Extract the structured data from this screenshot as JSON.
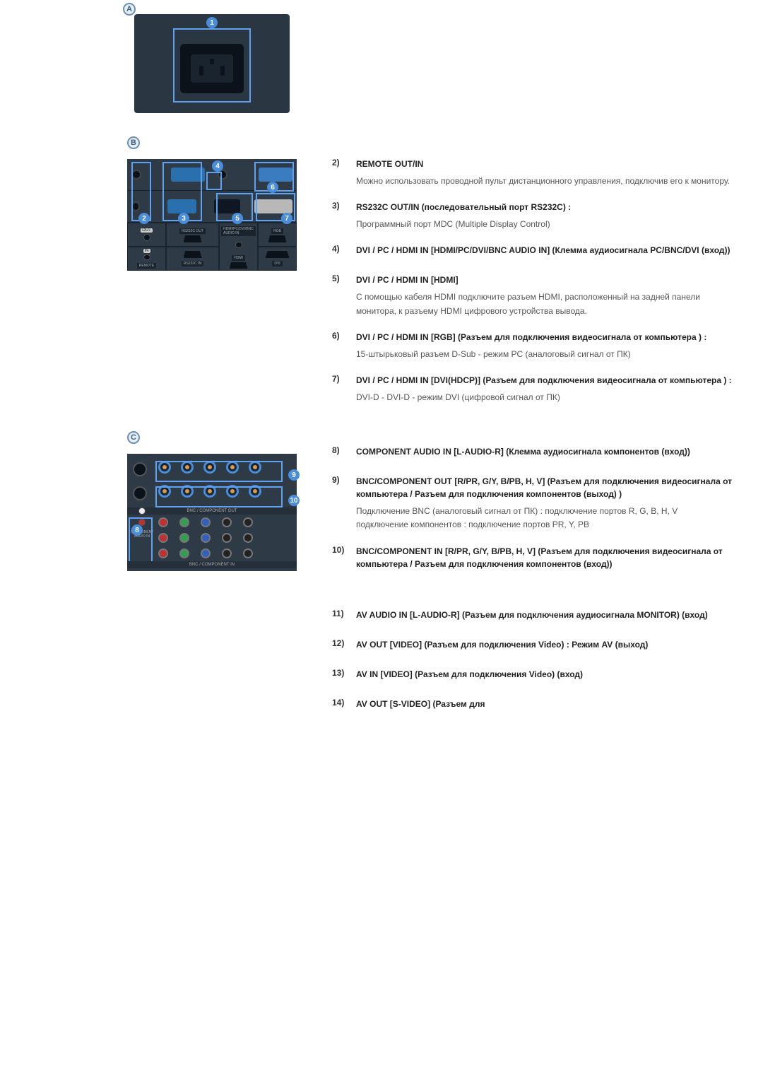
{
  "colors": {
    "badge_border": "#6a8fb5",
    "badge_fill": "#e6eef6",
    "badge_text": "#3a5f85",
    "num_fill": "#4a8dd8",
    "selection_border": "#5fa2f0",
    "panel_bg": "#2e3a46",
    "text_primary": "#333333",
    "text_secondary": "#555555"
  },
  "badges": {
    "a": "A",
    "b": "B",
    "c": "C"
  },
  "panel_a": {
    "callouts": {
      "n1": "1"
    }
  },
  "panel_b": {
    "callouts": {
      "n2": "2",
      "n3": "3",
      "n4": "4",
      "n5": "5",
      "n6": "6",
      "n7": "7"
    },
    "labels": {
      "out": "OUT",
      "in": "IN",
      "remote": "REMOTE",
      "rs232_out": "RS232C OUT",
      "rs232_in": "RS232C IN",
      "audio": "HDMI/PC/DVI/BNC AUDIO IN",
      "hdmi": "HDMI",
      "rgb": "RGB",
      "dvi": "DVI"
    }
  },
  "panel_c": {
    "callouts": {
      "n8": "8",
      "n9": "9",
      "n10": "10"
    },
    "labels": {
      "comp_audio": "COMPONENT AUDIO IN",
      "bnc_out": "BNC / COMPONENT OUT",
      "bnc_in": "BNC / COMPONENT IN"
    }
  },
  "items_b": [
    {
      "n": "2)",
      "title": "REMOTE OUT/IN",
      "desc": "Можно использовать проводной пульт дистанционного управления, подключив его к монитору."
    },
    {
      "n": "3)",
      "title": "RS232C OUT/IN (последовательный порт RS232C) :",
      "desc": "Программный порт MDC (Multiple Display Control)"
    },
    {
      "n": "4)",
      "title": "DVI / PC / HDMI IN [HDMI/PC/DVI/BNC AUDIO IN] (Клемма аудиосигнала PC/BNC/DVI (вход))",
      "desc": ""
    },
    {
      "n": "5)",
      "title": "DVI / PC / HDMI IN [HDMI]",
      "desc": "С помощью кабеля HDMI подключите разъем HDMI, расположенный на задней панели монитора, к разъему HDMI цифрового устройства вывода."
    },
    {
      "n": "6)",
      "title": "DVI / PC / HDMI IN [RGB] (Разъем для подключения видеосигнала от компьютера ) :",
      "desc": "15-штырьковый разъем D-Sub - режим PC (аналоговый сигнал от ПК)"
    },
    {
      "n": "7)",
      "title": "DVI / PC / HDMI IN [DVI(HDCP)] (Разъем для подключения видеосигнала от компьютера ) :",
      "desc": "DVI-D - DVI-D - режим DVI (цифровой сигнал от ПК)"
    }
  ],
  "items_c": [
    {
      "n": "8)",
      "title": "COMPONENT AUDIO IN [L-AUDIO-R] (Клемма аудиосигнала компонентов (вход))",
      "desc": ""
    },
    {
      "n": "9)",
      "title": "BNC/COMPONENT OUT [R/PR, G/Y, B/PB, H, V] (Разъем для подключения видеосигнала от компьютера / Разъем для подключения компонентов (выход) )",
      "desc": "Подключение BNC (аналоговый сигнал от ПК) : подключение портов R, G, B, H, V\nподключение компонентов : подключение портов PR, Y, PB"
    },
    {
      "n": "10)",
      "title": "BNC/COMPONENT IN [R/PR, G/Y, B/PB, H, V] (Разъем для подключения видеосигнала от компьютера / Разъем для подключения компонентов (вход))",
      "desc": ""
    }
  ],
  "items_d": [
    {
      "n": "11)",
      "title": "AV AUDIO IN [L-AUDIO-R] (Разъем для подключения аудиосигнала MONITOR) (вход)",
      "desc": ""
    },
    {
      "n": "12)",
      "title": "AV OUT [VIDEO] (Разъем для подключения Video) : Режим AV (выход)",
      "desc": ""
    },
    {
      "n": "13)",
      "title": "AV IN [VIDEO] (Разъем для подключения Video) (вход)",
      "desc": ""
    },
    {
      "n": "14)",
      "title": "AV OUT [S-VIDEO] (Разъем для",
      "desc": ""
    }
  ]
}
